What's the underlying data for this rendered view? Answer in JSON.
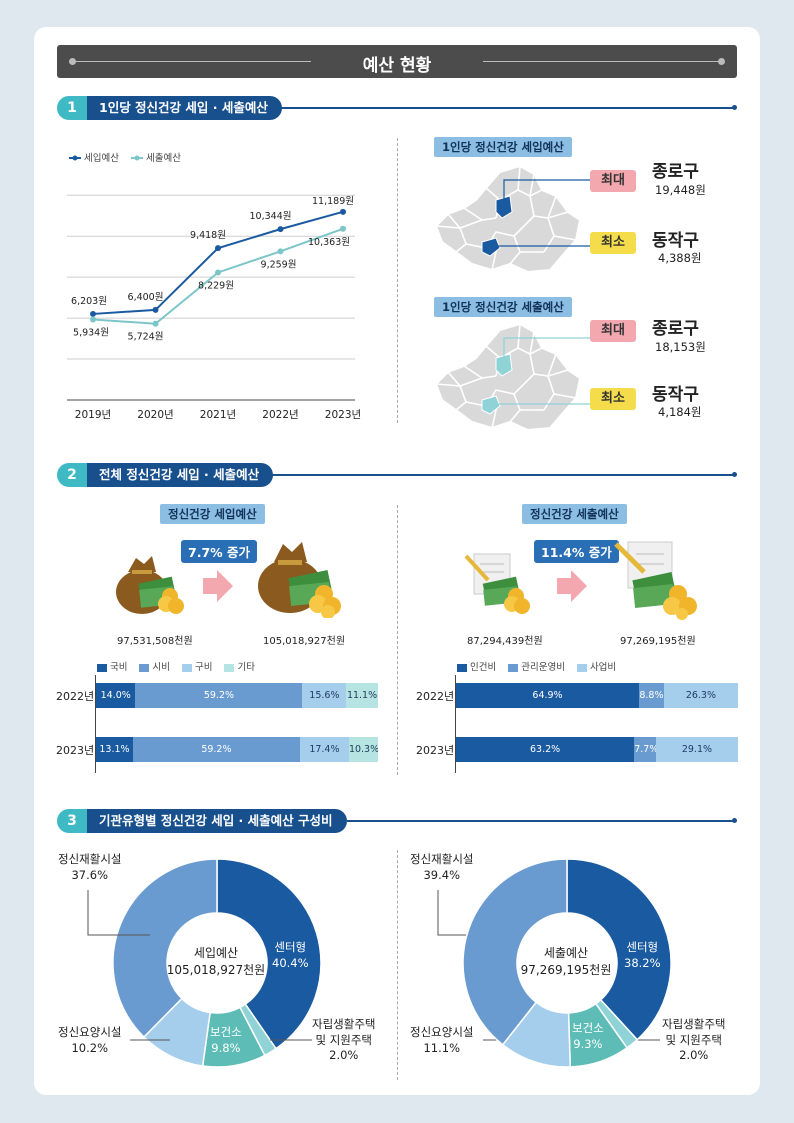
{
  "title": "예산 현황",
  "sections": {
    "s1": {
      "num": "1",
      "label": "1인당 정신건강 세입 · 세출예산"
    },
    "s2": {
      "num": "2",
      "label": "전체 정신건강 세입 · 세출예산"
    },
    "s3": {
      "num": "3",
      "label": "기관유형별 정신건강 세입 · 세출예산 구성비"
    }
  },
  "maps": {
    "revenue": {
      "title": "1인당 정신건강 세입예산",
      "max_tag": "최대",
      "max_district": "종로구",
      "max_value": "19,448원",
      "min_tag": "최소",
      "min_district": "동작구",
      "min_value": "4,388원",
      "color": "#1a5aa0"
    },
    "expense": {
      "title": "1인당 정신건강 세출예산",
      "max_tag": "최대",
      "max_district": "종로구",
      "max_value": "18,153원",
      "min_tag": "최소",
      "min_district": "동작구",
      "min_value": "4,184원",
      "color": "#8fd3d7"
    }
  },
  "totals": {
    "revenue": {
      "title": "정신건강 세입예산",
      "increase": "7.7% 증가",
      "before": "97,531,508천원",
      "after": "105,018,927천원"
    },
    "expense": {
      "title": "정신건강 세출예산",
      "increase": "11.4% 증가",
      "before": "87,294,439천원",
      "after": "97,269,195천원"
    }
  },
  "chart_data": [
    {
      "type": "line",
      "categories": [
        "2019년",
        "2020년",
        "2021년",
        "2022년",
        "2023년"
      ],
      "series": [
        {
          "name": "세입예산",
          "color": "#1a5aa0",
          "values": [
            6203,
            6400,
            9418,
            10344,
            11189
          ],
          "labels": [
            "6,203원",
            "6,400원",
            "9,418원",
            "10,344원",
            "11,189원"
          ]
        },
        {
          "name": "세출예산",
          "color": "#7cc6c9",
          "values": [
            5934,
            5724,
            8229,
            9259,
            10363
          ],
          "labels": [
            "5,934원",
            "5,724원",
            "8,229원",
            "9,259원",
            "10,363원"
          ]
        }
      ],
      "grid": true,
      "legend": "top-left"
    },
    {
      "type": "bar",
      "orientation": "horizontal-stacked",
      "categories": [
        "2022년",
        "2023년"
      ],
      "series": [
        {
          "name": "국비",
          "color": "#1a5aa0",
          "values": [
            14.0,
            13.1
          ],
          "labels": [
            "14.0%",
            "13.1%"
          ]
        },
        {
          "name": "시비",
          "color": "#6a9bd0",
          "values": [
            59.2,
            59.2
          ],
          "labels": [
            "59.2%",
            "59.2%"
          ]
        },
        {
          "name": "구비",
          "color": "#a5cdec",
          "values": [
            15.6,
            17.4
          ],
          "labels": [
            "15.6%",
            "17.4%"
          ]
        },
        {
          "name": "기타",
          "color": "#b6e4e2",
          "values": [
            11.1,
            10.3
          ],
          "labels": [
            "11.1%",
            "10.3%"
          ]
        }
      ],
      "legend": "top-left"
    },
    {
      "type": "bar",
      "orientation": "horizontal-stacked",
      "categories": [
        "2022년",
        "2023년"
      ],
      "series": [
        {
          "name": "인건비",
          "color": "#1a5aa0",
          "values": [
            64.9,
            63.2
          ],
          "labels": [
            "64.9%",
            "63.2%"
          ]
        },
        {
          "name": "관리운영비",
          "color": "#6a9bd0",
          "values": [
            8.8,
            7.7
          ],
          "labels": [
            "8.8%",
            "7.7%"
          ]
        },
        {
          "name": "사업비",
          "color": "#a5cdec",
          "values": [
            26.3,
            29.1
          ],
          "labels": [
            "26.3%",
            "29.1%"
          ]
        }
      ],
      "legend": "top-left"
    },
    {
      "type": "pie",
      "center_title": "세입예산",
      "center_value": "105,018,927천원",
      "slices": [
        {
          "name": "센터형",
          "value": 40.4,
          "label": "40.4%",
          "color": "#1a5aa0"
        },
        {
          "name": "자립생활주택 및 지원주택",
          "value": 2.0,
          "label": "2.0%",
          "color": "#8fd3d7"
        },
        {
          "name": "보건소",
          "value": 9.8,
          "label": "9.8%",
          "color": "#5dbdb6"
        },
        {
          "name": "정신요양시설",
          "value": 10.2,
          "label": "10.2%",
          "color": "#a5cdec"
        },
        {
          "name": "정신재활시설",
          "value": 37.6,
          "label": "37.6%",
          "color": "#6a9bd0"
        }
      ]
    },
    {
      "type": "pie",
      "center_title": "세출예산",
      "center_value": "97,269,195천원",
      "slices": [
        {
          "name": "센터형",
          "value": 38.2,
          "label": "38.2%",
          "color": "#1a5aa0"
        },
        {
          "name": "자립생활주택 및 지원주택",
          "value": 2.0,
          "label": "2.0%",
          "color": "#8fd3d7"
        },
        {
          "name": "보건소",
          "value": 9.3,
          "label": "9.3%",
          "color": "#5dbdb6"
        },
        {
          "name": "정신요양시설",
          "value": 11.1,
          "label": "11.1%",
          "color": "#a5cdec"
        },
        {
          "name": "정신재활시설",
          "value": 39.4,
          "label": "39.4%",
          "color": "#6a9bd0"
        }
      ]
    }
  ],
  "donut_labels": {
    "rehab": "정신재활시설",
    "nursing": "정신요양시설",
    "center": "센터형",
    "health": "보건소",
    "housing1": "자립생활주택",
    "housing2": "및 지원주택"
  }
}
